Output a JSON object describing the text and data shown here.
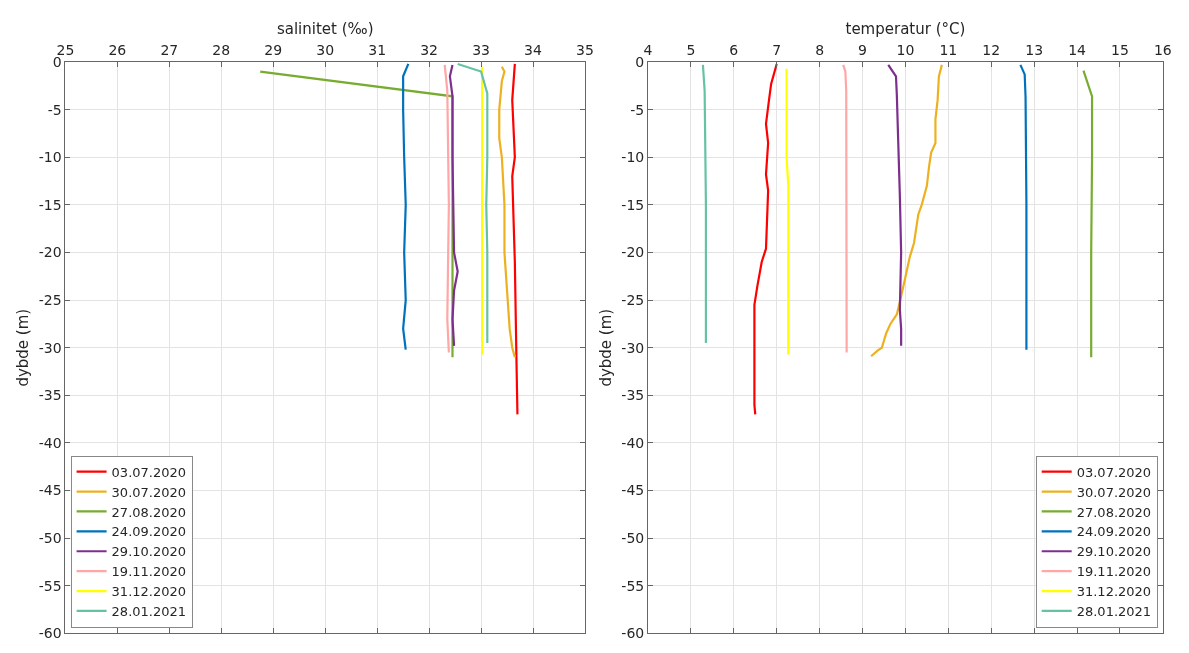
{
  "chart_data": [
    {
      "type": "line",
      "xlabel": "salinitet (‰)",
      "ylabel": "dybde (m)",
      "xlim": [
        25,
        35
      ],
      "xticks": [
        25,
        26,
        27,
        28,
        29,
        30,
        31,
        32,
        33,
        34,
        35
      ],
      "ylim": [
        -60,
        0
      ],
      "yticks": [
        -60,
        -55,
        -50,
        -45,
        -40,
        -35,
        -30,
        -25,
        -20,
        -15,
        -10,
        -5,
        0
      ],
      "grid": true,
      "legend": "bottom left",
      "series": [
        {
          "name": "03.07.2020",
          "color": "#ff0000",
          "x": [
            33.65,
            33.6,
            33.65,
            33.6,
            33.65,
            33.68,
            33.7
          ],
          "values": [
            -0.2,
            -4,
            -10,
            -12,
            -21,
            -31,
            -37
          ]
        },
        {
          "name": "30.07.2020",
          "color": "#edb120",
          "x": [
            33.4,
            33.45,
            33.4,
            33.35,
            33.35,
            33.4,
            33.45,
            33.45,
            33.5,
            33.55,
            33.6,
            33.65
          ],
          "values": [
            -0.5,
            -1,
            -2,
            -5,
            -8,
            -10,
            -15,
            -20,
            -24,
            -28,
            -30,
            -31
          ]
        },
        {
          "name": "27.08.2020",
          "color": "#77ac30",
          "x": [
            28.75,
            32.45,
            32.45,
            32.45,
            32.45
          ],
          "values": [
            -1,
            -3.6,
            -10,
            -20,
            -31
          ]
        },
        {
          "name": "24.09.2020",
          "color": "#0072bd",
          "x": [
            31.6,
            31.5,
            31.5,
            31.52,
            31.55,
            31.52,
            31.55,
            31.5,
            31.55
          ],
          "values": [
            -0.2,
            -1.5,
            -5,
            -10,
            -15,
            -20,
            -25,
            -28,
            -30.2
          ]
        },
        {
          "name": "29.10.2020",
          "color": "#7e2f8e",
          "x": [
            32.45,
            32.4,
            32.45,
            32.45,
            32.48,
            32.55,
            32.48,
            32.45,
            32.48
          ],
          "values": [
            -0.3,
            -1.5,
            -3.6,
            -10,
            -20,
            -22,
            -24,
            -27,
            -29.8
          ]
        },
        {
          "name": "19.11.2020",
          "color": "#ffa6a6",
          "x": [
            32.3,
            32.35,
            32.38,
            32.35,
            32.38
          ],
          "values": [
            -0.3,
            -3,
            -15,
            -27,
            -30.5
          ]
        },
        {
          "name": "31.12.2020",
          "color": "#ffff00",
          "x": [
            33.02,
            33.02
          ],
          "values": [
            -0.5,
            -30.7
          ]
        },
        {
          "name": "28.01.2021",
          "color": "#66c2a5",
          "x": [
            32.55,
            33.0,
            33.12,
            33.12,
            33.1,
            33.12,
            33.12
          ],
          "values": [
            -0.2,
            -1,
            -3.3,
            -10,
            -15,
            -20,
            -29.5
          ]
        }
      ]
    },
    {
      "type": "line",
      "xlabel": "temperatur (°C)",
      "ylabel": "dybde (m)",
      "xlim": [
        4,
        16
      ],
      "xticks": [
        4,
        5,
        6,
        7,
        8,
        9,
        10,
        11,
        12,
        13,
        14,
        15,
        16
      ],
      "ylim": [
        -60,
        0
      ],
      "yticks": [
        -60,
        -55,
        -50,
        -45,
        -40,
        -35,
        -30,
        -25,
        -20,
        -15,
        -10,
        -5,
        0
      ],
      "grid": true,
      "legend": "bottom right",
      "series": [
        {
          "name": "03.07.2020",
          "color": "#ff0000",
          "x": [
            7.0,
            6.87,
            6.82,
            6.75,
            6.8,
            6.75,
            6.8,
            6.75,
            6.65,
            6.55,
            6.48,
            6.48,
            6.48,
            6.5
          ],
          "values": [
            -0.2,
            -2.3,
            -4,
            -6.5,
            -8.5,
            -11.8,
            -13.5,
            -19.6,
            -21,
            -23.5,
            -25.5,
            -30,
            -36,
            -37
          ]
        },
        {
          "name": "30.07.2020",
          "color": "#edb120",
          "x": [
            10.85,
            10.78,
            10.75,
            10.7,
            10.7,
            10.6,
            10.55,
            10.5,
            10.38,
            10.3,
            10.2,
            10.1,
            9.98,
            9.88,
            9.8,
            9.65,
            9.55,
            9.45,
            9.35,
            9.2
          ],
          "values": [
            -0.3,
            -1.5,
            -4,
            -6,
            -8.5,
            -9.5,
            -11,
            -13,
            -15,
            -16,
            -19,
            -20.5,
            -23,
            -25,
            -26.5,
            -27.5,
            -28.5,
            -30,
            -30.3,
            -30.9
          ]
        },
        {
          "name": "27.08.2020",
          "color": "#77ac30",
          "x": [
            14.15,
            14.35,
            14.35,
            14.33,
            14.33
          ],
          "values": [
            -0.9,
            -3.6,
            -10,
            -20,
            -31
          ]
        },
        {
          "name": "24.09.2020",
          "color": "#0072bd",
          "x": [
            12.68,
            12.78,
            12.8,
            12.82,
            12.82
          ],
          "values": [
            -0.3,
            -1.3,
            -3.7,
            -15,
            -30.2
          ]
        },
        {
          "name": "29.10.2020",
          "color": "#7e2f8e",
          "x": [
            9.6,
            9.78,
            9.8,
            9.83,
            9.87,
            9.9,
            9.87,
            9.9,
            9.9
          ],
          "values": [
            -0.3,
            -1.5,
            -3.5,
            -8,
            -14,
            -20,
            -26,
            -28,
            -29.8
          ]
        },
        {
          "name": "19.11.2020",
          "color": "#ffa6a6",
          "x": [
            8.55,
            8.6,
            8.62,
            8.63
          ],
          "values": [
            -0.3,
            -1,
            -3,
            -30.5
          ]
        },
        {
          "name": "31.12.2020",
          "color": "#ffff00",
          "x": [
            7.23,
            7.23,
            7.27,
            7.27,
            7.27
          ],
          "values": [
            -0.7,
            -10,
            -13,
            -25,
            -30.7
          ]
        },
        {
          "name": "28.01.2021",
          "color": "#66c2a5",
          "x": [
            5.28,
            5.32,
            5.35,
            5.35,
            5.35
          ],
          "values": [
            -0.3,
            -3,
            -15,
            -25,
            -29.5
          ]
        }
      ]
    }
  ]
}
